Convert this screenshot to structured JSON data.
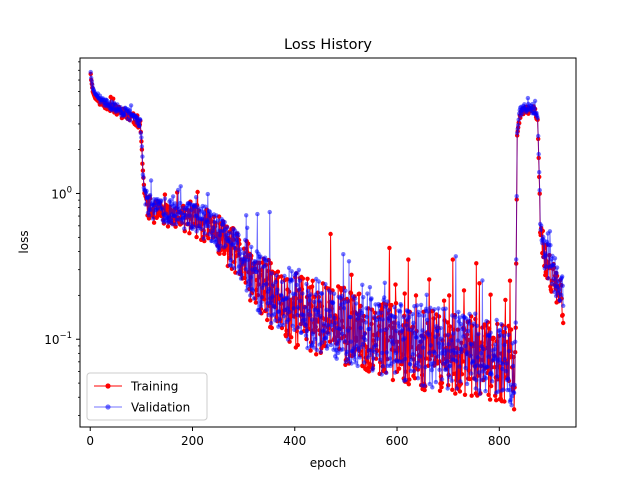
{
  "chart_data": {
    "type": "line",
    "title": "Loss History",
    "xlabel": "epoch",
    "ylabel": "loss",
    "yscale": "log",
    "xlim": [
      -20,
      950
    ],
    "ylim": [
      0.025,
      8.5
    ],
    "x_ticks": [
      0,
      200,
      400,
      600,
      800
    ],
    "y_ticks": [
      {
        "value": 1,
        "base": "10",
        "exp": "0"
      },
      {
        "value": 0.1,
        "base": "10",
        "exp": "−1"
      }
    ],
    "legend": {
      "position": "lower-left"
    },
    "colors": {
      "training": "#ff0000",
      "validation": "#0000ff"
    },
    "series": [
      {
        "name": "Training",
        "color": "#ff0000",
        "anchors_x": [
          1,
          2,
          5,
          10,
          20,
          40,
          60,
          80,
          98,
          101,
          103,
          106,
          110,
          120,
          140,
          160,
          180,
          200,
          220,
          240,
          260,
          280,
          300,
          320,
          340,
          360,
          380,
          400,
          450,
          500,
          550,
          600,
          650,
          700,
          750,
          800,
          825,
          830,
          832,
          835,
          840,
          850,
          860,
          870,
          875,
          878,
          880,
          885,
          890,
          900,
          910,
          920,
          925
        ],
        "anchors_y": [
          6.6,
          6.0,
          5.0,
          4.5,
          4.2,
          3.9,
          3.6,
          3.3,
          3.05,
          2.0,
          1.35,
          1.0,
          0.85,
          0.76,
          0.72,
          0.7,
          0.68,
          0.66,
          0.62,
          0.56,
          0.48,
          0.4,
          0.33,
          0.26,
          0.22,
          0.19,
          0.17,
          0.16,
          0.14,
          0.12,
          0.105,
          0.095,
          0.085,
          0.08,
          0.075,
          0.07,
          0.06,
          0.05,
          0.12,
          2.5,
          3.4,
          3.7,
          3.75,
          3.6,
          3.2,
          1.3,
          0.6,
          0.42,
          0.35,
          0.3,
          0.25,
          0.2,
          0.18
        ],
        "noise": [
          0.0,
          0.0,
          0.0,
          0.0,
          0.02,
          0.03,
          0.04,
          0.04,
          0.04,
          0.0,
          0.04,
          0.06,
          0.08,
          0.08,
          0.08,
          0.08,
          0.09,
          0.1,
          0.12,
          0.13,
          0.14,
          0.16,
          0.18,
          0.2,
          0.22,
          0.24,
          0.25,
          0.26,
          0.26,
          0.27,
          0.27,
          0.27,
          0.28,
          0.28,
          0.28,
          0.28,
          0.3,
          0.2,
          0.0,
          0.0,
          0.03,
          0.03,
          0.03,
          0.04,
          0.0,
          0.0,
          0.1,
          0.12,
          0.12,
          0.14,
          0.15,
          0.16,
          0.16
        ],
        "seed": 11
      },
      {
        "name": "Validation",
        "color": "#0000ff",
        "anchors_x": [
          1,
          2,
          5,
          10,
          20,
          40,
          60,
          80,
          98,
          101,
          103,
          106,
          110,
          120,
          140,
          160,
          180,
          200,
          220,
          240,
          260,
          280,
          300,
          320,
          340,
          360,
          380,
          400,
          450,
          500,
          550,
          600,
          650,
          700,
          750,
          800,
          825,
          830,
          832,
          835,
          840,
          850,
          860,
          870,
          875,
          878,
          880,
          885,
          890,
          900,
          910,
          920,
          925
        ],
        "anchors_y": [
          6.8,
          6.2,
          5.3,
          4.8,
          4.4,
          4.0,
          3.7,
          3.4,
          3.15,
          2.1,
          1.4,
          1.05,
          0.88,
          0.8,
          0.76,
          0.73,
          0.71,
          0.69,
          0.65,
          0.58,
          0.5,
          0.42,
          0.34,
          0.27,
          0.23,
          0.2,
          0.18,
          0.17,
          0.145,
          0.125,
          0.11,
          0.1,
          0.09,
          0.085,
          0.08,
          0.075,
          0.065,
          0.055,
          0.13,
          2.6,
          3.6,
          3.85,
          3.9,
          3.75,
          3.3,
          1.4,
          0.65,
          0.45,
          0.37,
          0.32,
          0.27,
          0.22,
          0.19
        ],
        "noise": [
          0.0,
          0.0,
          0.0,
          0.0,
          0.02,
          0.03,
          0.04,
          0.04,
          0.04,
          0.0,
          0.04,
          0.06,
          0.08,
          0.08,
          0.08,
          0.08,
          0.09,
          0.1,
          0.12,
          0.13,
          0.14,
          0.16,
          0.18,
          0.2,
          0.22,
          0.24,
          0.25,
          0.26,
          0.26,
          0.27,
          0.27,
          0.27,
          0.28,
          0.28,
          0.28,
          0.28,
          0.3,
          0.2,
          0.0,
          0.0,
          0.03,
          0.03,
          0.03,
          0.04,
          0.0,
          0.0,
          0.1,
          0.12,
          0.12,
          0.14,
          0.15,
          0.16,
          0.16
        ],
        "seed": 29
      }
    ],
    "n_points": 925
  }
}
